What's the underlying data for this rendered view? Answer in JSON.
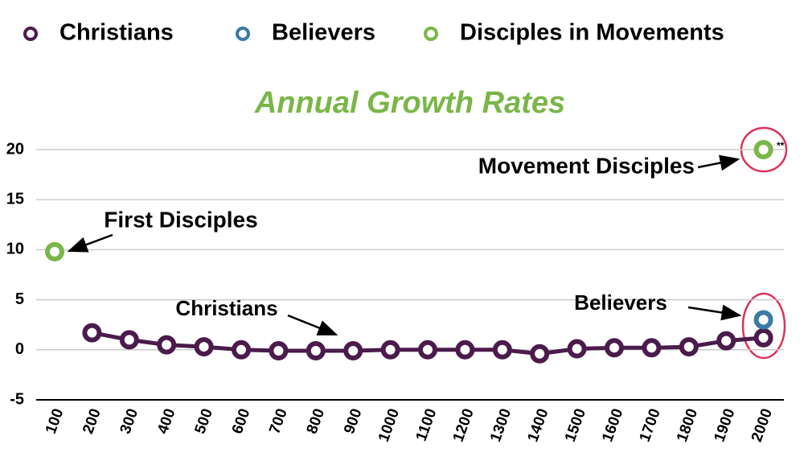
{
  "chart_data": {
    "type": "line",
    "title": "Annual Growth Rates",
    "categories": [
      "100",
      "200",
      "300",
      "400",
      "500",
      "600",
      "700",
      "800",
      "900",
      "1000",
      "1100",
      "1200",
      "1300",
      "1400",
      "1500",
      "1600",
      "1700",
      "1800",
      "1900",
      "2000"
    ],
    "series": [
      {
        "name": "Christians",
        "color": "#4b1b4b",
        "values": [
          null,
          1.7,
          1.0,
          0.5,
          0.3,
          0,
          -0.1,
          -0.1,
          -0.1,
          0,
          0,
          0,
          0,
          -0.4,
          0.1,
          0.2,
          0.2,
          0.3,
          0.9,
          1.2
        ]
      },
      {
        "name": "Believers",
        "color": "#3a7ca5",
        "values": [
          null,
          null,
          null,
          null,
          null,
          null,
          null,
          null,
          null,
          null,
          null,
          null,
          null,
          null,
          null,
          null,
          null,
          null,
          null,
          3.0
        ]
      },
      {
        "name": "Disciples in Movements",
        "color": "#7ab648",
        "values": [
          9.8,
          null,
          null,
          null,
          null,
          null,
          null,
          null,
          null,
          null,
          null,
          null,
          null,
          null,
          null,
          null,
          null,
          null,
          null,
          20
        ]
      }
    ],
    "ylim": [
      -5,
      20
    ],
    "yticks": [
      -5,
      0,
      5,
      10,
      15,
      20
    ],
    "grid": true,
    "annotations": [
      "First Disciples",
      "Movement Disciples",
      "Christians",
      "Believers",
      "**"
    ]
  }
}
